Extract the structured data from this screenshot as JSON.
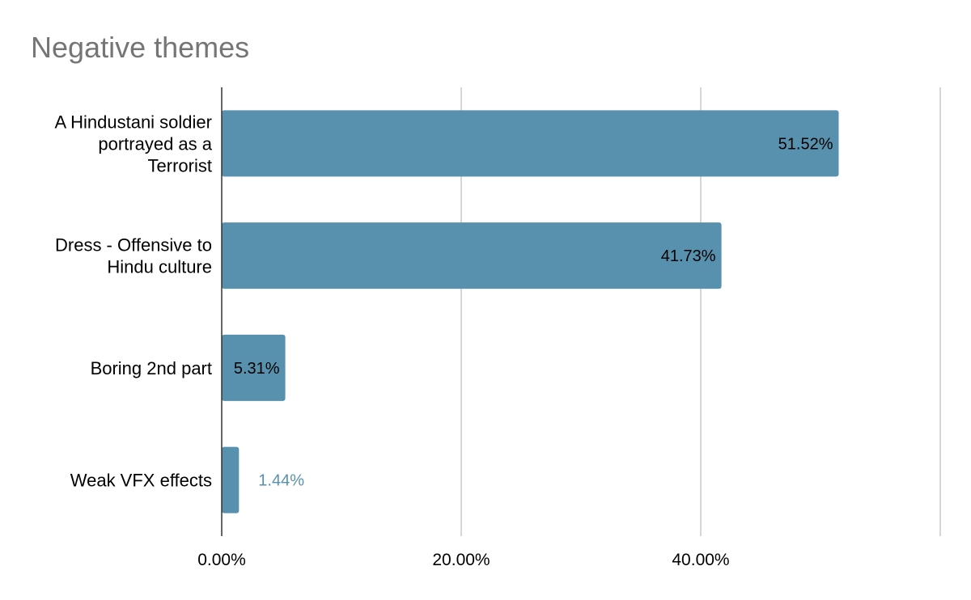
{
  "chart_data": {
    "type": "bar",
    "orientation": "horizontal",
    "title": "Negative themes",
    "categories": [
      [
        "A Hindustani soldier",
        "portrayed as a",
        "Terrorist"
      ],
      [
        "Dress - Offensive to",
        "Hindu culture"
      ],
      [
        "Boring 2nd part"
      ],
      [
        "Weak VFX effects"
      ]
    ],
    "values": [
      51.52,
      41.73,
      5.31,
      1.44
    ],
    "value_labels": [
      "51.52%",
      "41.73%",
      "5.31%",
      "1.44%"
    ],
    "xlim": [
      0,
      60
    ],
    "x_ticks": [
      0,
      20,
      40,
      60
    ],
    "x_tick_labels": [
      "0.00%",
      "20.00%",
      "40.00%",
      ""
    ],
    "grid": true,
    "legend": "none",
    "bar_color": "#5891ad",
    "label_inside_color": "#000000",
    "label_outside_color": "#5891ad"
  }
}
